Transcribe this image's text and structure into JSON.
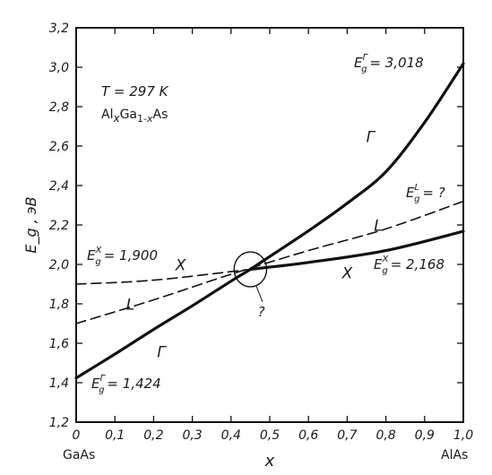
{
  "chart_data": {
    "type": "line",
    "xlabel": "x",
    "ylabel": "E_g , эВ",
    "xlim": [
      0,
      1.0
    ],
    "ylim": [
      1.2,
      3.2
    ],
    "x_ticks": [
      "0",
      "0,1",
      "0,2",
      "0,3",
      "0,4",
      "0,5",
      "0,6",
      "0,7",
      "0,8",
      "0,9",
      "1,0"
    ],
    "y_ticks": [
      "1,2",
      "1,4",
      "1,6",
      "1,8",
      "2,0",
      "2,2",
      "2,4",
      "2,6",
      "2,8",
      "3,0",
      "3,2"
    ],
    "x_end_labels": {
      "left": "GaAs",
      "right": "AlAs"
    },
    "grid": false,
    "series": [
      {
        "name": "Γ",
        "style": "solid",
        "color": "#111111",
        "points": [
          [
            0,
            1.424
          ],
          [
            0.1,
            1.545
          ],
          [
            0.2,
            1.67
          ],
          [
            0.3,
            1.79
          ],
          [
            0.4,
            1.915
          ],
          [
            0.45,
            1.975
          ],
          [
            0.5,
            2.04
          ],
          [
            0.6,
            2.17
          ],
          [
            0.7,
            2.31
          ],
          [
            0.8,
            2.47
          ],
          [
            0.9,
            2.72
          ],
          [
            1.0,
            3.018
          ]
        ]
      },
      {
        "name": "X",
        "style": "solid",
        "color": "#111111",
        "points": [
          [
            0.45,
            1.975
          ],
          [
            0.6,
            2.01
          ],
          [
            0.8,
            2.07
          ],
          [
            1.0,
            2.168
          ]
        ]
      },
      {
        "name": "X",
        "style": "dashed",
        "color": "#111111",
        "points": [
          [
            0,
            1.9
          ],
          [
            0.2,
            1.92
          ],
          [
            0.45,
            1.975
          ]
        ]
      },
      {
        "name": "L",
        "style": "dashed",
        "color": "#111111",
        "points": [
          [
            0,
            1.7
          ],
          [
            0.2,
            1.82
          ],
          [
            0.4,
            1.95
          ],
          [
            0.6,
            2.07
          ],
          [
            0.8,
            2.18
          ],
          [
            1.0,
            2.32
          ]
        ]
      }
    ],
    "curve_labels": [
      {
        "text": "Γ",
        "x": 0.76,
        "y": 2.62
      },
      {
        "text": "L",
        "x": 0.78,
        "y": 2.17
      },
      {
        "text": "X",
        "x": 0.7,
        "y": 1.93
      },
      {
        "text": "X",
        "x": 0.27,
        "y": 1.97
      },
      {
        "text": "L",
        "x": 0.14,
        "y": 1.77
      },
      {
        "text": "Γ",
        "x": 0.22,
        "y": 1.53
      }
    ],
    "annotations": {
      "temperature": "T = 297 K",
      "composition": {
        "main": "Al",
        "x1": "x",
        "mid": "Ga",
        "sub": "1-",
        "x2": "x",
        "end": "As"
      },
      "eg_gamma_top": {
        "prefix": "E",
        "sub": "g",
        "sup": "Γ",
        "value": "= 3,018"
      },
      "eg_l_right": {
        "prefix": "E",
        "sub": "g",
        "sup": "L",
        "value": "= ?"
      },
      "eg_x_right": {
        "prefix": "E",
        "sub": "g",
        "sup": "X",
        "value": "= 2,168"
      },
      "eg_x_left": {
        "prefix": "E",
        "sub": "g",
        "sup": "X",
        "value": "= 1,900"
      },
      "eg_gamma_left": {
        "prefix": "E",
        "sub": "g",
        "sup": "Γ",
        "value": "= 1,424"
      },
      "question": "?"
    },
    "crossover_circle": {
      "x": 0.45,
      "y": 1.975,
      "radius_x": 0.042
    }
  }
}
